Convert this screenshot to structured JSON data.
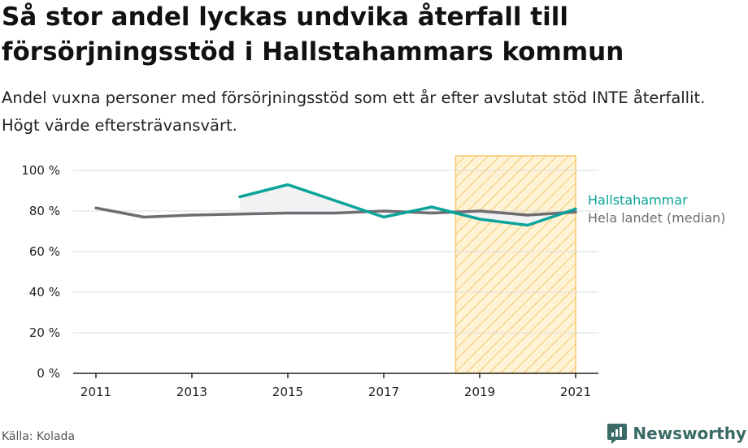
{
  "title": "Så stor andel lyckas undvika återfall till försörjningsstöd i Hallstahammars kommun",
  "subtitle": "Andel vuxna personer med försörjningsstöd som ett år efter avslutat stöd INTE återfallit. Högt värde eftersträvansvärt.",
  "source": "Källa: Kolada",
  "brand": "Newsworthy",
  "colors": {
    "hallstahammar": "#0aa49a",
    "national": "#6f6d72",
    "highlight_fill": "#fff3d6",
    "highlight_stroke": "#f5c66b",
    "area_fill": "#f2f2f4",
    "grid": "#dcdcdc"
  },
  "chart_data": {
    "type": "line",
    "x": [
      2011,
      2012,
      2013,
      2014,
      2015,
      2016,
      2017,
      2018,
      2019,
      2020,
      2021
    ],
    "x_ticks": [
      2011,
      2013,
      2015,
      2017,
      2019,
      2021
    ],
    "y_ticks": [
      0,
      20,
      40,
      60,
      80,
      100
    ],
    "y_tick_labels": [
      "0 %",
      "20 %",
      "40 %",
      "60 %",
      "80 %",
      "100 %"
    ],
    "ylim": [
      0,
      100
    ],
    "grid": true,
    "highlight_range": [
      2018.5,
      2021
    ],
    "series": [
      {
        "name": "Hallstahammar",
        "color_key": "hallstahammar",
        "values": [
          null,
          null,
          null,
          87,
          93,
          85,
          77,
          82,
          76,
          73,
          81
        ]
      },
      {
        "name": "Hela landet (median)",
        "color_key": "national",
        "values": [
          81.5,
          77,
          78,
          78.5,
          79,
          79,
          80,
          79,
          80,
          78,
          79.5
        ]
      }
    ]
  }
}
